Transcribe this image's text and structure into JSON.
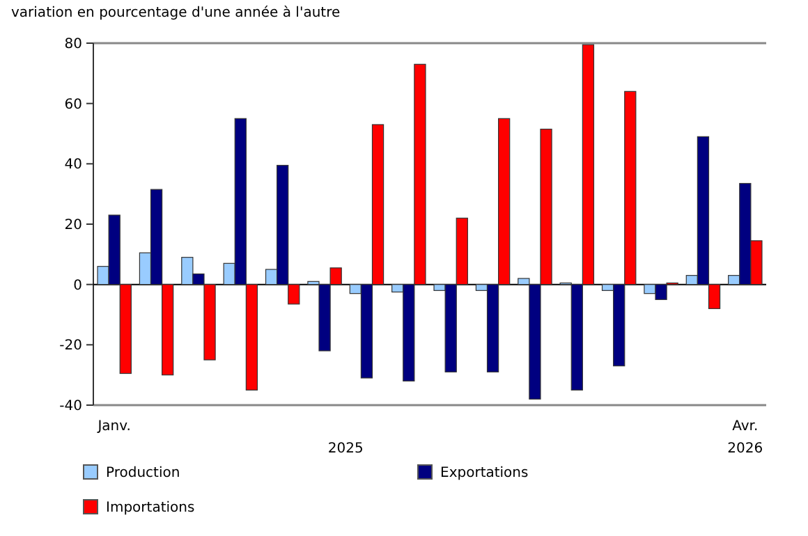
{
  "chart_data": {
    "type": "bar",
    "ylabel": "variation en pourcentage d'une année à l'autre",
    "categories": [
      "Janv.",
      null,
      null,
      null,
      null,
      null,
      null,
      null,
      null,
      null,
      null,
      null,
      null,
      null,
      null,
      "Avr."
    ],
    "series": [
      {
        "name": "Production",
        "color": "#99ccff",
        "values": [
          6,
          10.5,
          9,
          7,
          5,
          1,
          -3,
          -2.5,
          -2,
          -2,
          2,
          0.5,
          -2,
          -3,
          3,
          3
        ]
      },
      {
        "name": "Exportations",
        "color": "#000080",
        "values": [
          23,
          31.5,
          3.5,
          55,
          39.5,
          -22,
          -31,
          -32,
          -29,
          -29,
          -38,
          -35,
          -27,
          -5,
          49,
          33.5
        ]
      },
      {
        "name": "Importations",
        "color": "#ff0000",
        "values": [
          -29.5,
          -30,
          -25,
          -35,
          -6.5,
          5.5,
          53,
          73,
          22,
          55,
          51.5,
          79.5,
          64,
          0.5,
          -8,
          14.5
        ]
      }
    ],
    "ylim": [
      -40,
      80
    ],
    "yticks": [
      -40,
      -20,
      0,
      20,
      40,
      60,
      80
    ],
    "legend": "bottom",
    "annotations": [
      "2025",
      "2026"
    ]
  }
}
